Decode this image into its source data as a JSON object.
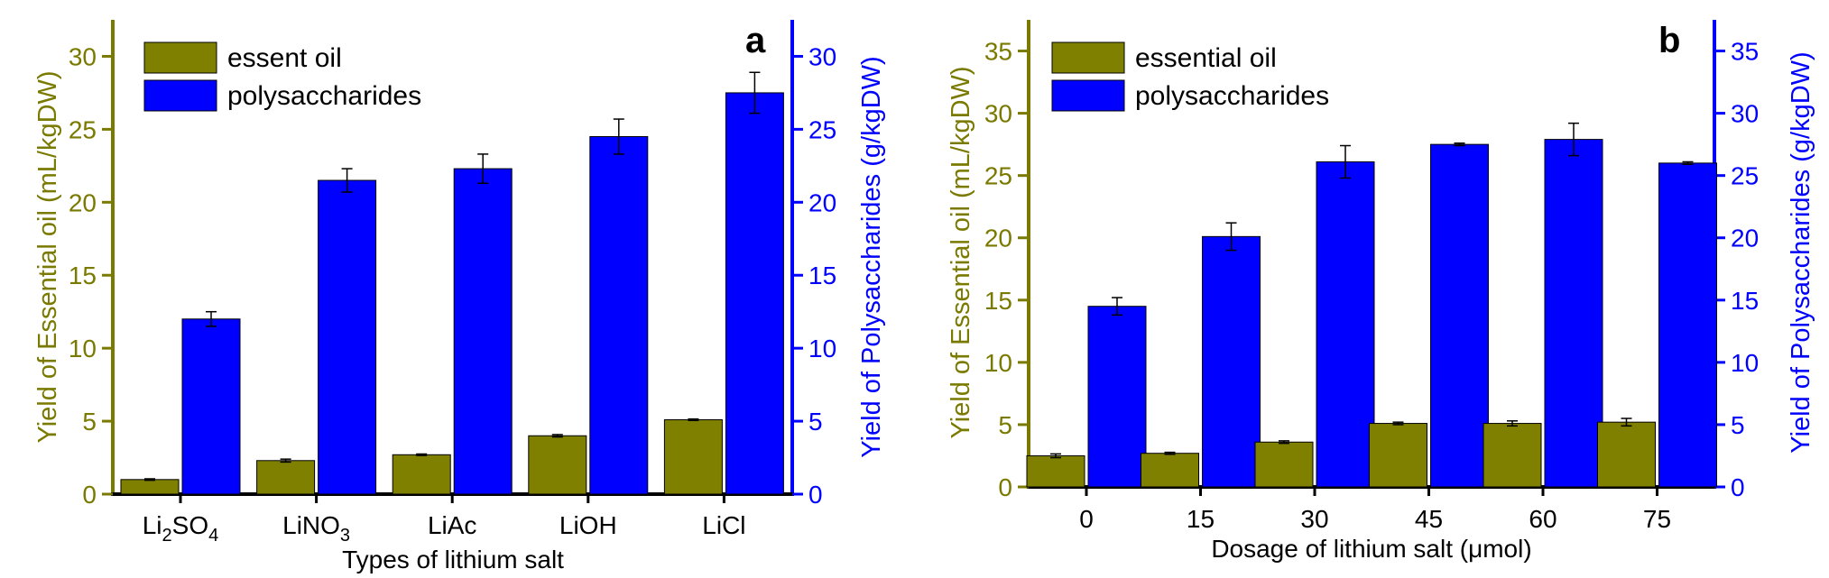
{
  "chart_data": [
    {
      "type": "bar",
      "panel_label": "a",
      "xlabel": "Types of lithium salt",
      "ylabel_left": "Yield of Essential oil (mL/kgDW)",
      "ylabel_right": "Yield of Polysaccharides (g/kgDW)",
      "categories": [
        {
          "base": "Li",
          "sub": "2",
          "base2": "SO",
          "sub2": "4"
        },
        {
          "base": "LiNO",
          "sub": "3",
          "base2": "",
          "sub2": ""
        },
        {
          "base": "LiAc",
          "sub": "",
          "base2": "",
          "sub2": ""
        },
        {
          "base": "LiOH",
          "sub": "",
          "base2": "",
          "sub2": ""
        },
        {
          "base": "LiCl",
          "sub": "",
          "base2": "",
          "sub2": ""
        }
      ],
      "ylim_left": [
        0,
        32.5
      ],
      "ylim_right": [
        0,
        32.5
      ],
      "yticks_left": [
        0,
        5,
        10,
        15,
        20,
        25,
        30
      ],
      "yticks_right": [
        0,
        5,
        10,
        15,
        20,
        25,
        30
      ],
      "series": [
        {
          "name": "essent oil",
          "color": "#7f7f00",
          "axis": "left",
          "values": [
            1.0,
            2.3,
            2.7,
            4.0,
            5.1
          ],
          "errors": [
            0.05,
            0.1,
            0.05,
            0.08,
            0.05
          ]
        },
        {
          "name": "polysaccharides",
          "color": "#0000ff",
          "axis": "right",
          "values": [
            12.0,
            21.5,
            22.3,
            24.5,
            27.5
          ],
          "errors": [
            0.5,
            0.8,
            1.0,
            1.2,
            1.4
          ]
        }
      ]
    },
    {
      "type": "bar",
      "panel_label": "b",
      "xlabel": "Dosage of lithium salt (μmol)",
      "ylabel_left": "Yield of Essential oil (mL/kgDW)",
      "ylabel_right": "Yield of Polysaccharides (g/kgDW)",
      "categories": [
        {
          "base": "0",
          "sub": "",
          "base2": "",
          "sub2": ""
        },
        {
          "base": "15",
          "sub": "",
          "base2": "",
          "sub2": ""
        },
        {
          "base": "30",
          "sub": "",
          "base2": "",
          "sub2": ""
        },
        {
          "base": "45",
          "sub": "",
          "base2": "",
          "sub2": ""
        },
        {
          "base": "60",
          "sub": "",
          "base2": "",
          "sub2": ""
        },
        {
          "base": "75",
          "sub": "",
          "base2": "",
          "sub2": ""
        }
      ],
      "ylim_left": [
        0,
        37.5
      ],
      "ylim_right": [
        0,
        37.5
      ],
      "yticks_left": [
        0,
        5,
        10,
        15,
        20,
        25,
        30,
        35
      ],
      "yticks_right": [
        0,
        5,
        10,
        15,
        20,
        25,
        30,
        35
      ],
      "series": [
        {
          "name": "essential oil",
          "color": "#7f7f00",
          "axis": "left",
          "values": [
            2.5,
            2.7,
            3.6,
            5.1,
            5.1,
            5.2
          ],
          "errors": [
            0.15,
            0.08,
            0.1,
            0.1,
            0.2,
            0.3
          ]
        },
        {
          "name": "polysaccharides",
          "color": "#0000ff",
          "axis": "right",
          "values": [
            14.5,
            20.1,
            26.1,
            27.5,
            27.9,
            26.0
          ],
          "errors": [
            0.7,
            1.1,
            1.3,
            0.1,
            1.3,
            0.1
          ]
        }
      ]
    }
  ]
}
